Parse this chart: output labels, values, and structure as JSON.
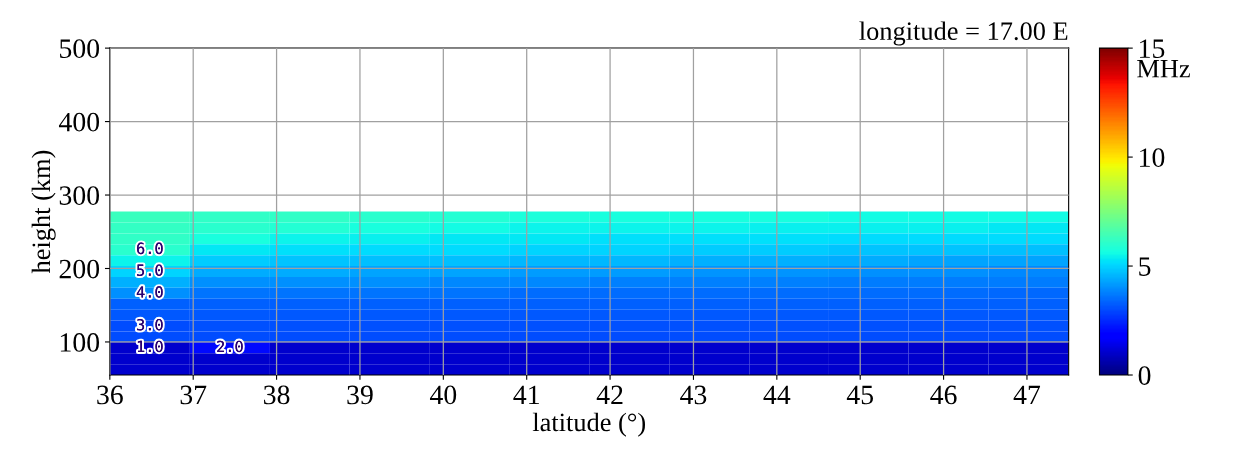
{
  "chart_data": {
    "type": "heatmap",
    "subtitle": "longitude = 17.00 E",
    "xlabel": "latitude (°)",
    "ylabel": "height (km)",
    "clabel": "MHz",
    "x": [
      36.48,
      37.44,
      38.4,
      39.35,
      40.31,
      41.27,
      42.23,
      43.19,
      44.15,
      45.1,
      46.06,
      47.02
    ],
    "y": [
      270.1,
      255.2,
      240.4,
      225.6,
      210.7,
      195.9,
      181.1,
      166.2,
      151.4,
      136.6,
      121.7,
      106.9,
      92.1,
      77.2,
      62.4
    ],
    "cells": [
      [
        6.3,
        6.1,
        6.1,
        6.0,
        5.9,
        5.8,
        5.7,
        5.7,
        5.7,
        5.6,
        5.6,
        5.6
      ],
      [
        6.2,
        6.0,
        5.9,
        5.7,
        5.6,
        5.5,
        5.5,
        5.5,
        5.4,
        5.4,
        5.4,
        5.3
      ],
      [
        6.1,
        5.7,
        5.5,
        5.4,
        5.3,
        5.3,
        5.2,
        5.2,
        5.2,
        5.1,
        5.1,
        5.1
      ],
      [
        6.0,
        5.3,
        5.2,
        5.1,
        5.1,
        5.0,
        5.0,
        4.9,
        4.9,
        4.8,
        4.8,
        4.7
      ],
      [
        5.5,
        4.9,
        4.8,
        4.7,
        4.7,
        4.6,
        4.6,
        4.5,
        4.5,
        4.4,
        4.3,
        4.3
      ],
      [
        5.0,
        4.4,
        4.4,
        4.3,
        4.3,
        4.2,
        4.2,
        4.1,
        4.1,
        4.0,
        4.0,
        3.9
      ],
      [
        4.5,
        4.0,
        4.0,
        4.0,
        3.9,
        3.9,
        3.8,
        3.8,
        3.8,
        3.7,
        3.7,
        3.7
      ],
      [
        4.0,
        3.6,
        3.6,
        3.6,
        3.6,
        3.5,
        3.5,
        3.5,
        3.5,
        3.5,
        3.5,
        3.4
      ],
      [
        3.3,
        3.3,
        3.3,
        3.3,
        3.3,
        3.3,
        3.3,
        3.3,
        3.3,
        3.3,
        3.3,
        3.3
      ],
      [
        3.2,
        3.2,
        3.2,
        3.2,
        3.2,
        3.2,
        3.2,
        3.2,
        3.2,
        3.2,
        3.2,
        3.2
      ],
      [
        3.0,
        3.1,
        3.1,
        3.1,
        3.1,
        3.1,
        3.1,
        3.1,
        3.1,
        3.1,
        3.1,
        3.1
      ],
      [
        3.0,
        3.0,
        3.0,
        3.0,
        3.0,
        3.0,
        3.0,
        3.0,
        3.0,
        3.0,
        3.0,
        3.0
      ],
      [
        1.0,
        2.0,
        1.0,
        1.0,
        1.0,
        1.0,
        1.0,
        1.0,
        1.0,
        1.0,
        1.0,
        1.0
      ],
      [
        1.0,
        1.0,
        1.0,
        1.0,
        1.0,
        1.0,
        1.0,
        1.0,
        1.0,
        1.0,
        1.0,
        1.0
      ],
      [
        1.0,
        1.0,
        1.0,
        1.0,
        1.0,
        1.0,
        1.0,
        1.0,
        1.0,
        1.0,
        1.0,
        1.0
      ]
    ],
    "cell_labels": [
      [
        null,
        null,
        null,
        null,
        null,
        null,
        null,
        null,
        null,
        null,
        null,
        null
      ],
      [
        null,
        null,
        null,
        null,
        null,
        null,
        null,
        null,
        null,
        null,
        null,
        null
      ],
      [
        null,
        null,
        null,
        null,
        null,
        null,
        null,
        null,
        null,
        null,
        null,
        null
      ],
      [
        "6.0",
        null,
        null,
        null,
        null,
        null,
        null,
        null,
        null,
        null,
        null,
        null
      ],
      [
        null,
        null,
        null,
        null,
        null,
        null,
        null,
        null,
        null,
        null,
        null,
        null
      ],
      [
        "5.0",
        null,
        null,
        null,
        null,
        null,
        null,
        null,
        null,
        null,
        null,
        null
      ],
      [
        null,
        null,
        null,
        null,
        null,
        null,
        null,
        null,
        null,
        null,
        null,
        null
      ],
      [
        "4.0",
        null,
        null,
        null,
        null,
        null,
        null,
        null,
        null,
        null,
        null,
        null
      ],
      [
        null,
        null,
        null,
        null,
        null,
        null,
        null,
        null,
        null,
        null,
        null,
        null
      ],
      [
        null,
        null,
        null,
        null,
        null,
        null,
        null,
        null,
        null,
        null,
        null,
        null
      ],
      [
        "3.0",
        null,
        null,
        null,
        null,
        null,
        null,
        null,
        null,
        null,
        null,
        null
      ],
      [
        null,
        null,
        null,
        null,
        null,
        null,
        null,
        null,
        null,
        null,
        null,
        null
      ],
      [
        "1.0",
        "2.0",
        null,
        null,
        null,
        null,
        null,
        null,
        null,
        null,
        null,
        null
      ],
      [
        null,
        null,
        null,
        null,
        null,
        null,
        null,
        null,
        null,
        null,
        null,
        null
      ],
      [
        null,
        null,
        null,
        null,
        null,
        null,
        null,
        null,
        null,
        null,
        null,
        null
      ]
    ],
    "xlim": [
      36,
      47.5
    ],
    "ylim": [
      55,
      500
    ],
    "xticks": [
      36,
      37,
      38,
      39,
      40,
      41,
      42,
      43,
      44,
      45,
      46,
      47
    ],
    "yticks": [
      100,
      200,
      300,
      400,
      500
    ],
    "clim": [
      0,
      15
    ],
    "cticks": [
      0,
      5,
      10,
      15
    ],
    "grid": true
  }
}
